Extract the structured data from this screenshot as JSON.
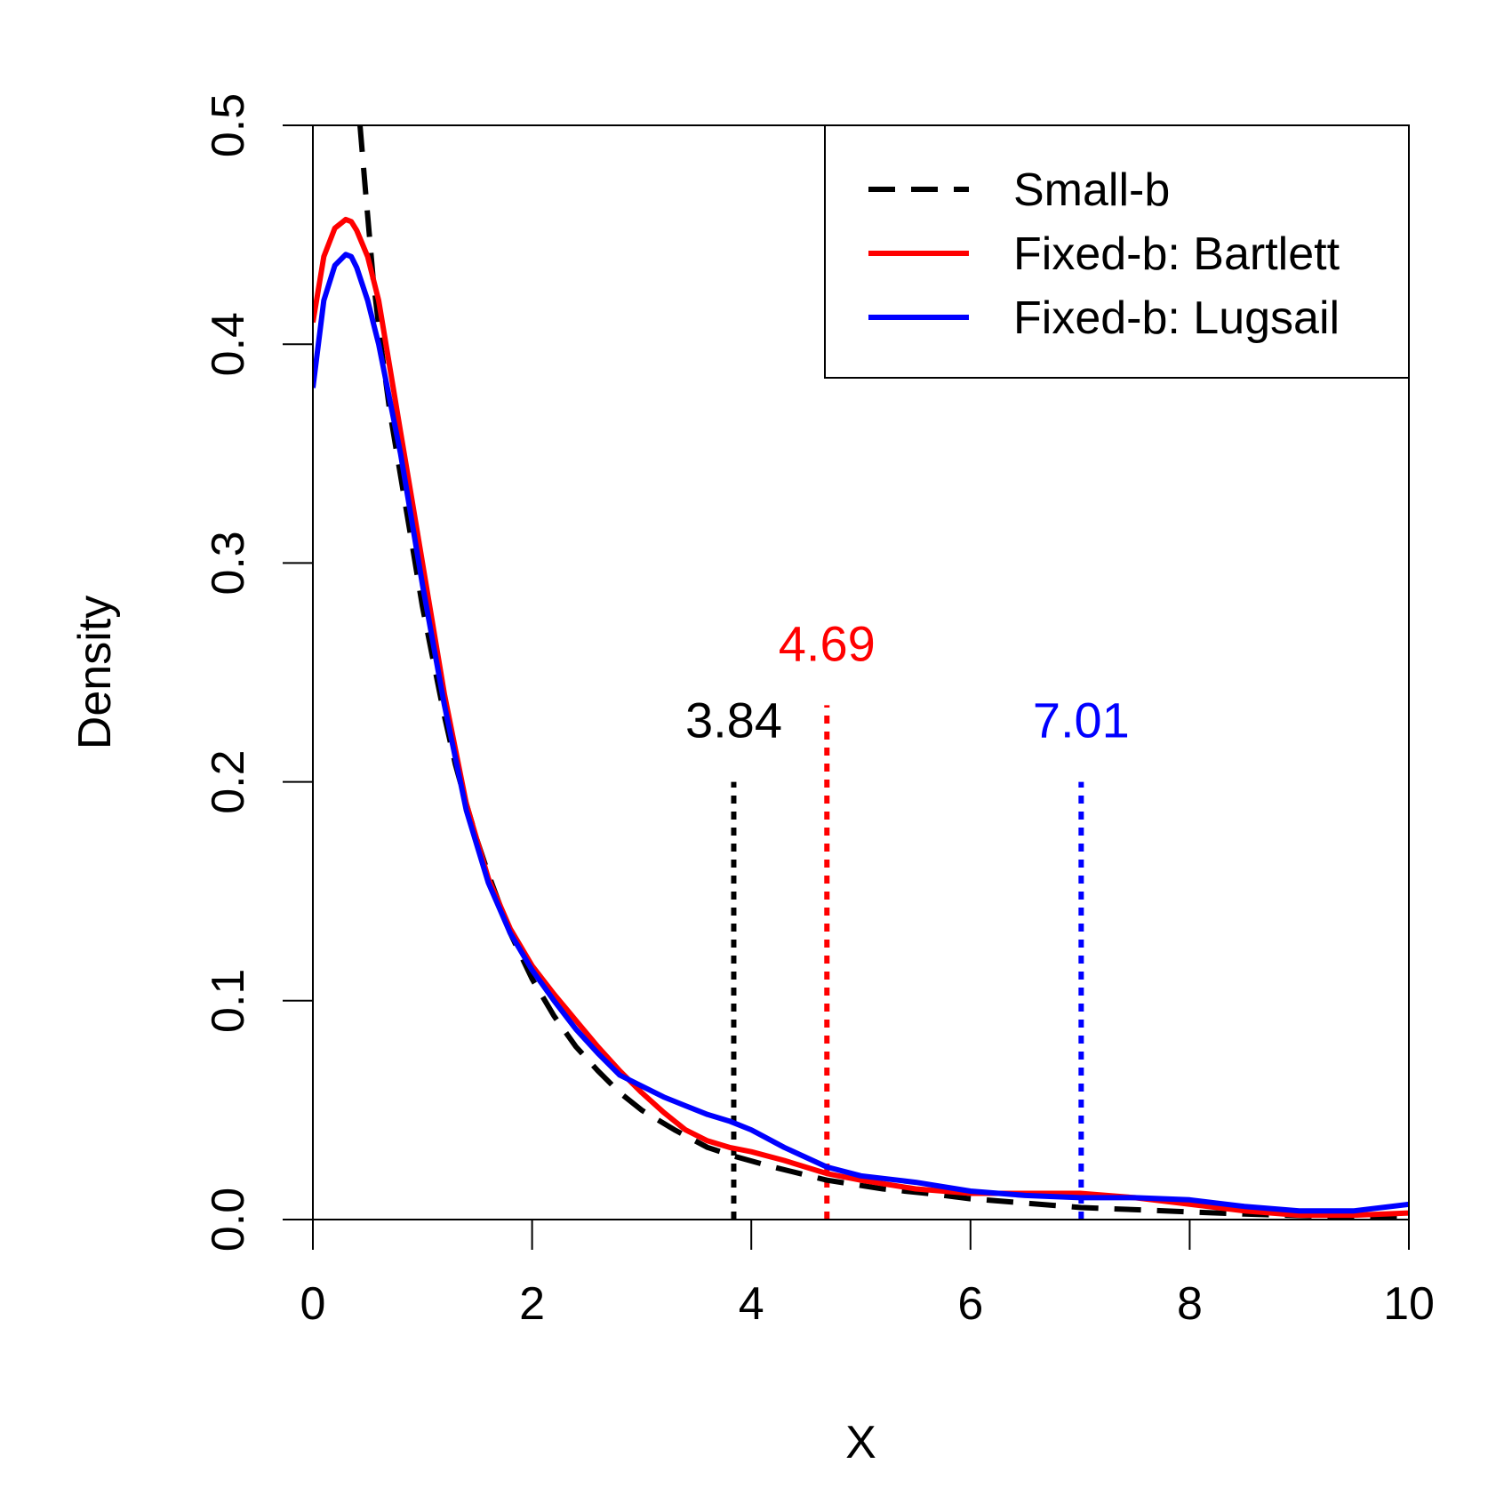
{
  "chart_data": {
    "type": "line",
    "title": "",
    "xlabel": "X",
    "ylabel": "Density",
    "xlim": [
      0,
      10
    ],
    "ylim": [
      0,
      0.5
    ],
    "x_ticks": [
      0,
      2,
      4,
      6,
      8,
      10
    ],
    "y_ticks": [
      0.0,
      0.1,
      0.2,
      0.3,
      0.4,
      0.5
    ],
    "x_tick_labels": [
      "0",
      "2",
      "4",
      "6",
      "8",
      "10"
    ],
    "y_tick_labels": [
      "0.0",
      "0.1",
      "0.2",
      "0.3",
      "0.4",
      "0.5"
    ],
    "grid": false,
    "legend_position": "top-right",
    "series": [
      {
        "name": "Small-b",
        "color": "#000000",
        "style": "dashed",
        "x": [
          0.43,
          0.48,
          0.55,
          0.62,
          0.7,
          0.8,
          0.9,
          1.0,
          1.1,
          1.2,
          1.3,
          1.4,
          1.5,
          1.6,
          1.8,
          2.0,
          2.2,
          2.4,
          2.6,
          2.8,
          3.0,
          3.3,
          3.6,
          3.84,
          4.2,
          4.69,
          5.2,
          5.6,
          6.0,
          6.5,
          7.01,
          7.5,
          8.0,
          8.5,
          9.0,
          9.5,
          10.0
        ],
        "y": [
          0.5,
          0.47,
          0.43,
          0.4,
          0.37,
          0.34,
          0.31,
          0.28,
          0.255,
          0.23,
          0.208,
          0.19,
          0.173,
          0.158,
          0.131,
          0.11,
          0.093,
          0.079,
          0.068,
          0.058,
          0.05,
          0.041,
          0.033,
          0.029,
          0.024,
          0.018,
          0.014,
          0.012,
          0.0095,
          0.0075,
          0.0055,
          0.0045,
          0.0035,
          0.0025,
          0.0018,
          0.0012,
          0.0008
        ]
      },
      {
        "name": "Fixed-b: Bartlett",
        "color": "#ff0000",
        "style": "solid",
        "x": [
          0.0,
          0.1,
          0.2,
          0.3,
          0.35,
          0.4,
          0.5,
          0.6,
          0.7,
          0.8,
          0.9,
          1.0,
          1.2,
          1.4,
          1.6,
          1.8,
          2.0,
          2.2,
          2.4,
          2.6,
          2.8,
          3.0,
          3.2,
          3.4,
          3.6,
          3.8,
          4.0,
          4.3,
          4.69,
          5.0,
          5.5,
          6.0,
          6.5,
          7.0,
          7.5,
          8.0,
          8.5,
          9.0,
          9.5,
          10.0
        ],
        "y": [
          0.41,
          0.44,
          0.453,
          0.457,
          0.456,
          0.452,
          0.44,
          0.42,
          0.39,
          0.36,
          0.33,
          0.3,
          0.24,
          0.19,
          0.156,
          0.133,
          0.116,
          0.103,
          0.091,
          0.079,
          0.068,
          0.058,
          0.049,
          0.041,
          0.036,
          0.033,
          0.031,
          0.027,
          0.021,
          0.018,
          0.014,
          0.012,
          0.012,
          0.012,
          0.01,
          0.007,
          0.004,
          0.002,
          0.002,
          0.003
        ]
      },
      {
        "name": "Fixed-b: Lugsail",
        "color": "#0000ff",
        "style": "solid",
        "x": [
          0.0,
          0.1,
          0.2,
          0.3,
          0.35,
          0.4,
          0.5,
          0.6,
          0.7,
          0.8,
          0.9,
          1.0,
          1.2,
          1.4,
          1.6,
          1.8,
          2.0,
          2.2,
          2.4,
          2.6,
          2.8,
          3.0,
          3.2,
          3.4,
          3.6,
          3.8,
          4.0,
          4.3,
          4.69,
          5.0,
          5.5,
          6.0,
          6.5,
          7.0,
          7.5,
          8.0,
          8.5,
          9.0,
          9.5,
          10.0
        ],
        "y": [
          0.38,
          0.42,
          0.436,
          0.441,
          0.44,
          0.435,
          0.42,
          0.4,
          0.375,
          0.35,
          0.32,
          0.29,
          0.235,
          0.187,
          0.154,
          0.131,
          0.114,
          0.1,
          0.087,
          0.076,
          0.066,
          0.061,
          0.056,
          0.052,
          0.048,
          0.045,
          0.041,
          0.033,
          0.024,
          0.02,
          0.017,
          0.013,
          0.011,
          0.01,
          0.01,
          0.009,
          0.006,
          0.004,
          0.004,
          0.007
        ]
      }
    ],
    "critical_values": [
      {
        "x": 3.84,
        "y_top": 0.2,
        "label": "3.84",
        "color": "#000000"
      },
      {
        "x": 4.69,
        "y_top": 0.235,
        "label": "4.69",
        "color": "#ff0000"
      },
      {
        "x": 7.01,
        "y_top": 0.2,
        "label": "7.01",
        "color": "#0000ff"
      }
    ]
  }
}
